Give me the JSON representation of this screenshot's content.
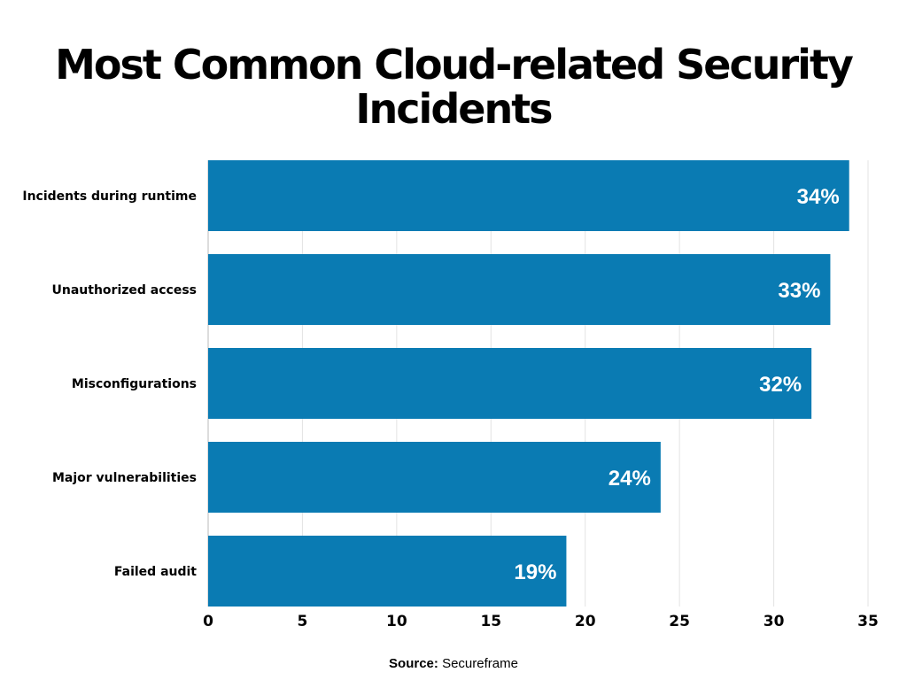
{
  "chart_data": {
    "type": "bar",
    "orientation": "horizontal",
    "title": "Most Common Cloud-related Security Incidents",
    "categories": [
      "Incidents during runtime",
      "Unauthorized access",
      "Misconfigurations",
      "Major vulnerabilities",
      "Failed audit"
    ],
    "values": [
      34,
      33,
      32,
      24,
      19
    ],
    "data_labels": [
      "34%",
      "33%",
      "32%",
      "24%",
      "19%"
    ],
    "xlim": [
      0,
      35
    ],
    "xticks": [
      "0",
      "5",
      "10",
      "15",
      "20",
      "25",
      "30",
      "35"
    ],
    "xlabel": "",
    "ylabel": "",
    "grid": true,
    "bar_color": "#0a7bb3"
  },
  "source": {
    "label": "Source:",
    "value": "Secureframe"
  }
}
